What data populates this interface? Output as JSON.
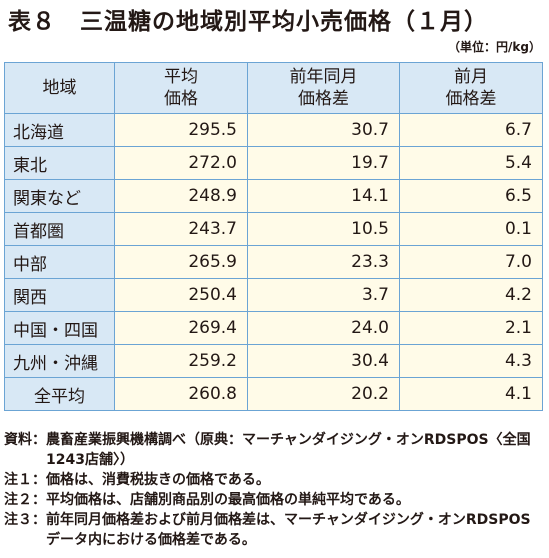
{
  "title": "表８　三温糖の地域別平均小売価格（１月）",
  "unit": "（単位：円/kg）",
  "table": {
    "headers": [
      [
        "地域"
      ],
      [
        "平均",
        "価格"
      ],
      [
        "前年同月",
        "価格差"
      ],
      [
        "前月",
        "価格差"
      ]
    ],
    "rows": [
      {
        "region": "北海道",
        "avg": "295.5",
        "yoy": "30.7",
        "mom": "6.7"
      },
      {
        "region": "東北",
        "avg": "272.0",
        "yoy": "19.7",
        "mom": "5.4"
      },
      {
        "region": "関東など",
        "avg": "248.9",
        "yoy": "14.1",
        "mom": "6.5"
      },
      {
        "region": "首都圏",
        "avg": "243.7",
        "yoy": "10.5",
        "mom": "0.1"
      },
      {
        "region": "中部",
        "avg": "265.9",
        "yoy": "23.3",
        "mom": "7.0"
      },
      {
        "region": "関西",
        "avg": "250.4",
        "yoy": "3.7",
        "mom": "4.2"
      },
      {
        "region": "中国・四国",
        "avg": "269.4",
        "yoy": "24.0",
        "mom": "2.1"
      },
      {
        "region": "九州・沖縄",
        "avg": "259.2",
        "yoy": "30.4",
        "mom": "4.3"
      },
      {
        "region": "全平均",
        "avg": "260.8",
        "yoy": "20.2",
        "mom": "4.1"
      }
    ]
  },
  "notes": [
    {
      "label": "資料：",
      "text": "農畜産業振興機構調べ（原典：マーチャンダイジング・オンRDSPOS〈全国1243店舗〉）"
    },
    {
      "label": "注１：",
      "text": "価格は、消費税抜きの価格である。"
    },
    {
      "label": "注２：",
      "text": "平均価格は、店舗別商品別の最高価格の単純平均である。"
    },
    {
      "label": "注３：",
      "text": "前年同月価格差および前月価格差は、マーチャンダイジング・オンRDSPOSデータ内における価格差である。"
    }
  ]
}
